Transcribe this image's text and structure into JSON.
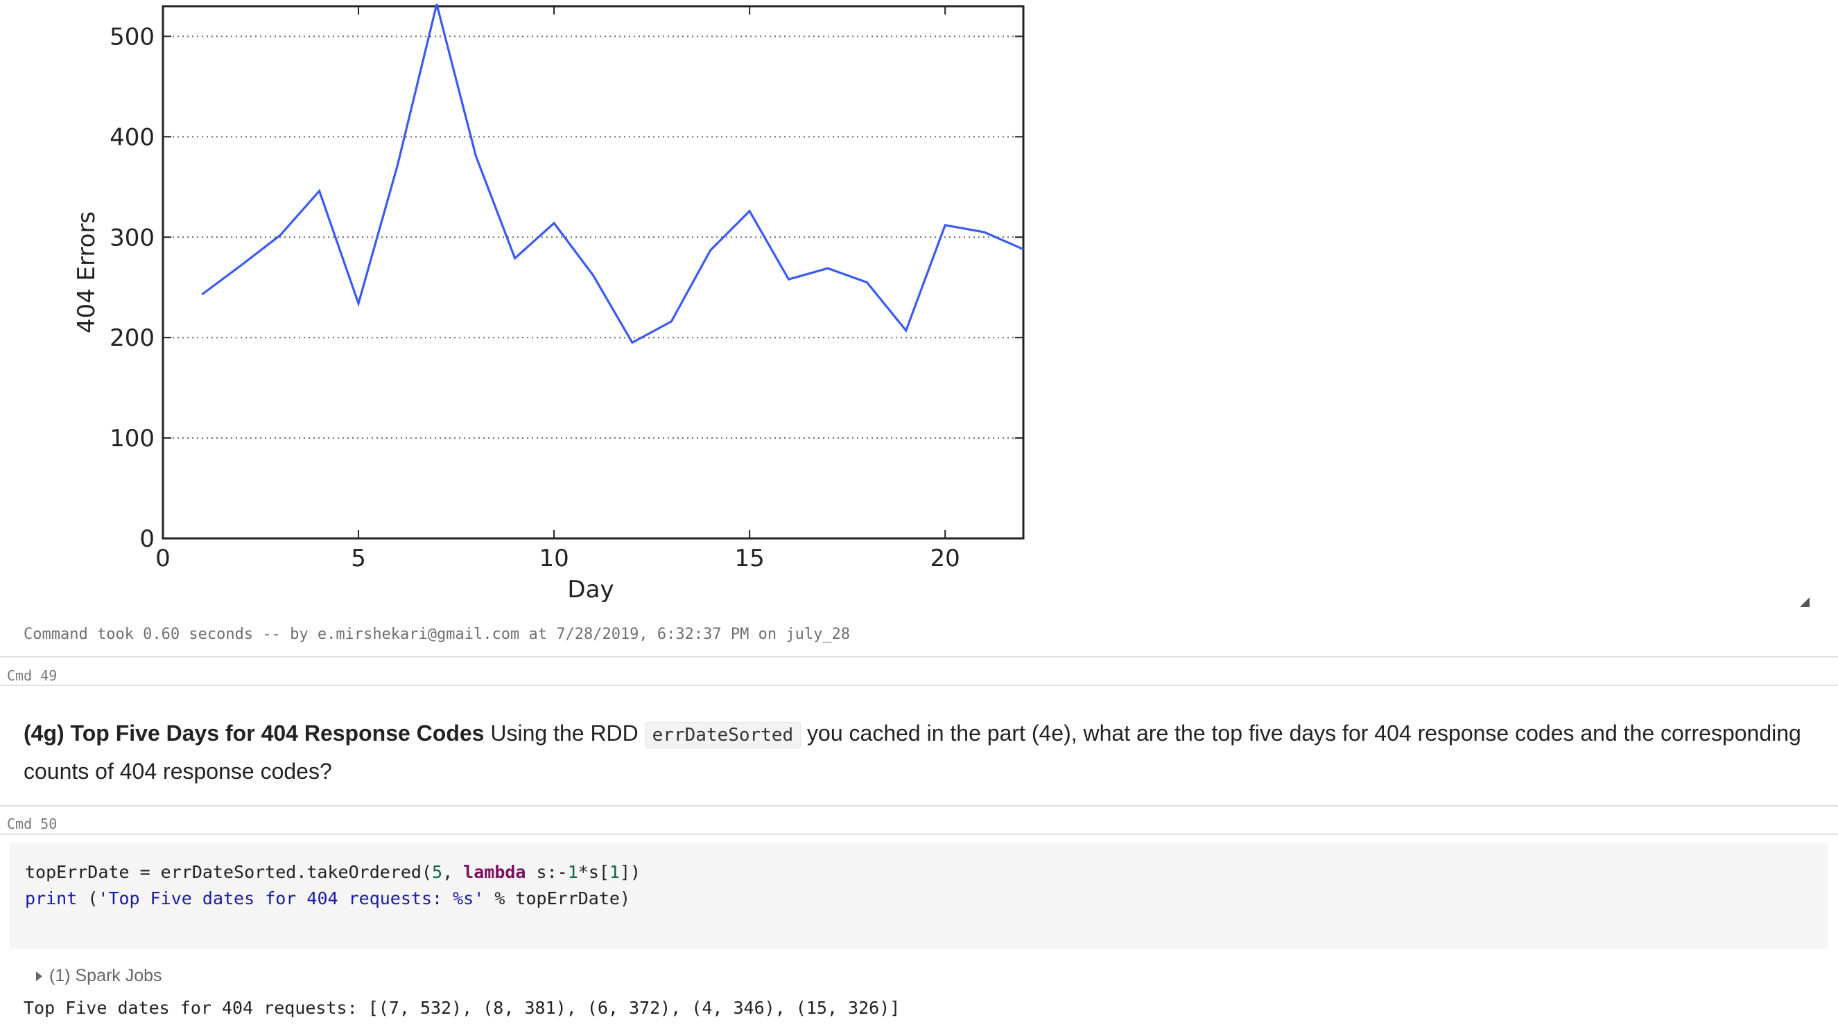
{
  "chart_data": {
    "type": "line",
    "xlabel": "Day",
    "ylabel": "404 Errors",
    "xlim": [
      0,
      22
    ],
    "ylim": [
      0,
      530
    ],
    "xticks": [
      0,
      5,
      10,
      15,
      20
    ],
    "yticks": [
      0,
      100,
      200,
      300,
      400,
      500
    ],
    "grid": "horizontal dotted",
    "series": [
      {
        "color": "#3b5bf0",
        "x": [
          1,
          2,
          3,
          4,
          5,
          6,
          7,
          8,
          9,
          10,
          11,
          12,
          13,
          14,
          15,
          16,
          17,
          18,
          19,
          20,
          21,
          22
        ],
        "y": [
          243,
          272,
          302,
          346,
          234,
          372,
          532,
          381,
          279,
          314,
          262,
          195,
          216,
          287,
          326,
          258,
          269,
          255,
          207,
          312,
          305,
          288
        ]
      }
    ]
  },
  "chart_status": "Command took 0.60 seconds -- by e.mirshekari@gmail.com at 7/28/2019, 6:32:37 PM on july_28",
  "cmd49": "Cmd 49",
  "markdown": {
    "heading": "(4g) Top Five Days for 404 Response Codes",
    "text1": " Using the RDD ",
    "code": "errDateSorted",
    "text2": " you cached in the part (4e), what are the top five days for 404 response codes and the corresponding counts of 404 response codes?"
  },
  "cmd50": "Cmd 50",
  "code": {
    "l1_a": "topErrDate = errDateSorted.takeOrdered(",
    "l1_n1": "5",
    "l1_b": ", ",
    "l1_kw": "lambda",
    "l1_c": " s:-",
    "l1_n2": "1",
    "l1_d": "*s[",
    "l1_n3": "1",
    "l1_e": "])",
    "l2_print": "print",
    "l2_a": " (",
    "l2_str": "'Top Five dates for 404 requests: %s'",
    "l2_b": " % topErrDate)"
  },
  "spark_jobs": "(1) Spark Jobs",
  "output": "Top Five dates for 404 requests: [(7, 532), (8, 381), (6, 372), (4, 346), (15, 326)]"
}
